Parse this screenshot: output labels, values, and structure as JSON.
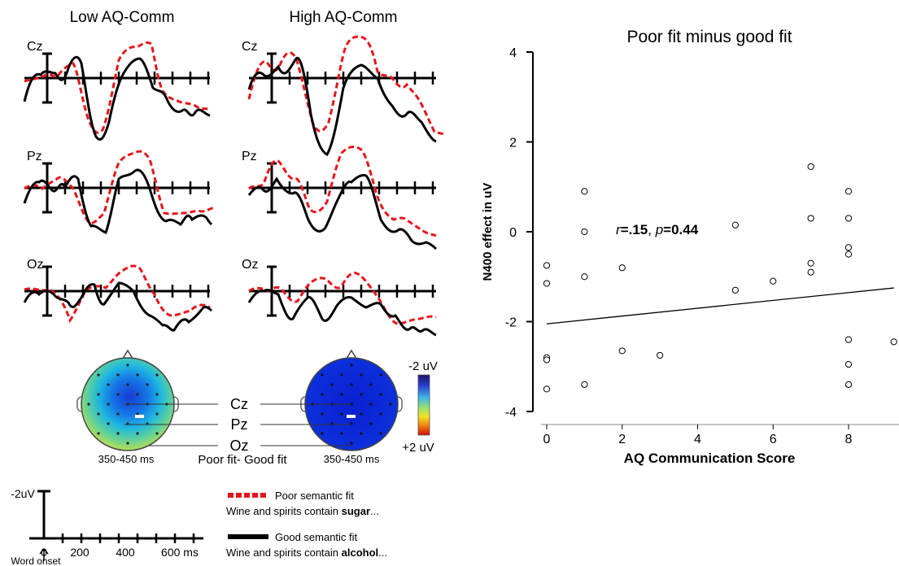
{
  "erp": {
    "group_titles": [
      "Low AQ-Comm",
      "High AQ-Comm"
    ],
    "electrodes": [
      "Cz",
      "Pz",
      "Oz"
    ],
    "good_fit_color": "#000000",
    "poor_fit_color": "#e8141b"
  },
  "topo": {
    "window_label": "350-450 ms",
    "center_caption": "Poor fit- Good fit",
    "electrode_labels": [
      "Cz",
      "Pz",
      "Oz"
    ],
    "scale_top": "-2 uV",
    "scale_bottom": "+2 uV"
  },
  "time_axis": {
    "amp_label": "-2uV",
    "ticks": [
      "0",
      "200",
      "400",
      "600 ms"
    ],
    "onset_label": "Word onset"
  },
  "legend": {
    "poor_label": "Poor semantic fit",
    "poor_sentence_pre": "Wine and spirits contain ",
    "poor_sentence_word": "sugar",
    "poor_sentence_post": "...",
    "good_label": "Good semantic fit",
    "good_sentence_pre": "Wine and spirits contain ",
    "good_sentence_word": "alcohol",
    "good_sentence_post": "..."
  },
  "chart_data": {
    "type": "scatter",
    "title": "Poor fit minus good fit",
    "xlabel": "AQ Communication Score",
    "ylabel": "N400 effect in uV",
    "xlim": [
      -0.3,
      9.2
    ],
    "ylim": [
      -4,
      4
    ],
    "xticks": [
      0,
      2,
      4,
      6,
      8
    ],
    "yticks": [
      -4,
      -2,
      0,
      2,
      4
    ],
    "annotation": {
      "r_sym": "r",
      "r_val": "=.15",
      "sep": ", ",
      "p_sym": "p",
      "p_val": "=0.44"
    },
    "points": [
      {
        "x": 0,
        "y": -0.75
      },
      {
        "x": 0,
        "y": -1.15
      },
      {
        "x": 0,
        "y": -2.8
      },
      {
        "x": 0,
        "y": -2.85
      },
      {
        "x": 0,
        "y": -3.5
      },
      {
        "x": 1,
        "y": 0.9
      },
      {
        "x": 1,
        "y": 0.0
      },
      {
        "x": 1,
        "y": -1.0
      },
      {
        "x": 1,
        "y": -3.4
      },
      {
        "x": 2,
        "y": -0.8
      },
      {
        "x": 2,
        "y": -2.65
      },
      {
        "x": 3,
        "y": -2.75
      },
      {
        "x": 5,
        "y": 0.15
      },
      {
        "x": 5,
        "y": -1.3
      },
      {
        "x": 6,
        "y": -1.1
      },
      {
        "x": 7,
        "y": 1.45
      },
      {
        "x": 7,
        "y": 0.3
      },
      {
        "x": 7,
        "y": -0.7
      },
      {
        "x": 7,
        "y": -0.9
      },
      {
        "x": 8,
        "y": 0.9
      },
      {
        "x": 8,
        "y": 0.3
      },
      {
        "x": 8,
        "y": -0.35
      },
      {
        "x": 8,
        "y": -0.5
      },
      {
        "x": 8,
        "y": -2.4
      },
      {
        "x": 8,
        "y": -2.95
      },
      {
        "x": 8,
        "y": -3.4
      },
      {
        "x": 9.2,
        "y": -2.45
      }
    ],
    "fit_line": [
      {
        "x": 0,
        "y": -2.05
      },
      {
        "x": 9.2,
        "y": -1.25
      }
    ]
  }
}
